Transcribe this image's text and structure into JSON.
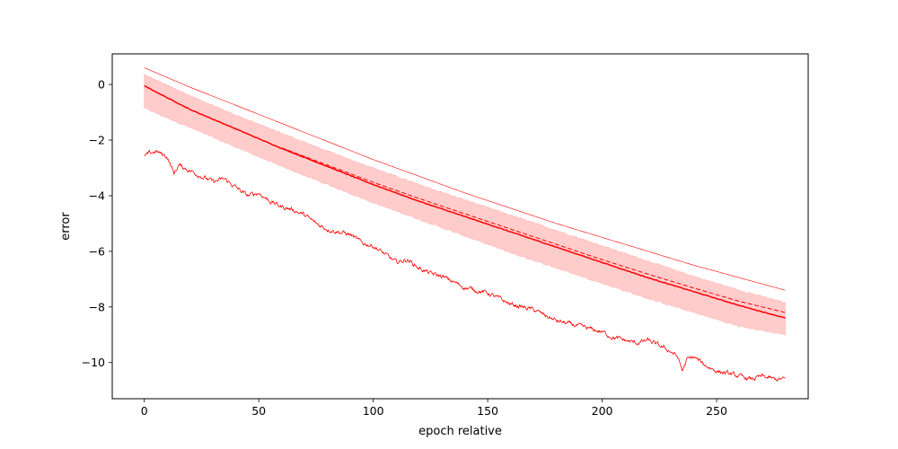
{
  "chart_data": {
    "type": "line",
    "title": "",
    "xlabel": "epoch relative",
    "ylabel": "error",
    "xlim": [
      -14,
      290
    ],
    "ylim": [
      -11.3,
      1.1
    ],
    "x_ticks": [
      0,
      50,
      100,
      150,
      200,
      250
    ],
    "y_ticks": [
      0,
      -2,
      -4,
      -6,
      -8,
      -10
    ],
    "grid": false,
    "legend": "none",
    "x_range": [
      0,
      280
    ],
    "band": {
      "color": "#ff0000",
      "opacity": 0.2,
      "x": [
        0,
        20,
        40,
        60,
        80,
        100,
        120,
        140,
        160,
        180,
        200,
        220,
        240,
        260,
        280
      ],
      "upper": [
        0.35,
        -0.4,
        -1.1,
        -1.75,
        -2.4,
        -3.0,
        -3.6,
        -4.15,
        -4.7,
        -5.25,
        -5.8,
        -6.35,
        -6.9,
        -7.4,
        -7.85
      ],
      "lower": [
        -0.85,
        -1.55,
        -2.25,
        -2.95,
        -3.6,
        -4.25,
        -4.85,
        -5.45,
        -6.05,
        -6.6,
        -7.15,
        -7.7,
        -8.2,
        -8.7,
        -9.0
      ]
    },
    "series": [
      {
        "style": "solid",
        "color": "#ff0000",
        "width": 1.5,
        "x": [
          0,
          20,
          40,
          60,
          80,
          100,
          120,
          140,
          160,
          180,
          200,
          220,
          240,
          260,
          280
        ],
        "y": [
          -0.05,
          -0.9,
          -1.6,
          -2.3,
          -2.95,
          -3.6,
          -4.2,
          -4.75,
          -5.3,
          -5.85,
          -6.4,
          -6.95,
          -7.45,
          -7.95,
          -8.4
        ]
      },
      {
        "style": "dashed",
        "color": "#ff0000",
        "width": 1.0,
        "x": [
          60,
          80,
          100,
          120,
          140,
          160,
          180,
          200,
          220,
          240,
          260,
          280
        ],
        "y": [
          -2.28,
          -2.9,
          -3.52,
          -4.1,
          -4.65,
          -5.2,
          -5.75,
          -6.3,
          -6.82,
          -7.32,
          -7.8,
          -8.2
        ]
      },
      {
        "style": "thin",
        "color": "#ff0000",
        "width": 0.6,
        "x": [
          0,
          20,
          40,
          60,
          80,
          100,
          120,
          140,
          160,
          180,
          200,
          220,
          240,
          260,
          280
        ],
        "y": [
          0.6,
          -0.1,
          -0.75,
          -1.4,
          -2.05,
          -2.7,
          -3.3,
          -3.9,
          -4.45,
          -5.0,
          -5.5,
          -6.0,
          -6.5,
          -6.95,
          -7.4
        ]
      },
      {
        "style": "noisy",
        "color": "#ff0000",
        "width": 0.8,
        "x": [
          0,
          2,
          5,
          10,
          13,
          15,
          20,
          25,
          30,
          35,
          40,
          45,
          50,
          55,
          60,
          65,
          70,
          75,
          80,
          85,
          90,
          95,
          100,
          105,
          110,
          115,
          120,
          125,
          130,
          135,
          140,
          145,
          150,
          155,
          160,
          165,
          170,
          175,
          180,
          185,
          190,
          195,
          200,
          205,
          210,
          215,
          220,
          225,
          230,
          233,
          235,
          237,
          240,
          245,
          250,
          255,
          260,
          265,
          270,
          275,
          280
        ],
        "y": [
          -2.6,
          -2.5,
          -2.4,
          -2.6,
          -3.2,
          -2.9,
          -3.1,
          -3.3,
          -3.5,
          -3.4,
          -3.7,
          -4.0,
          -3.9,
          -4.2,
          -4.4,
          -4.5,
          -4.7,
          -5.0,
          -5.2,
          -5.3,
          -5.4,
          -5.7,
          -5.8,
          -6.1,
          -6.4,
          -6.3,
          -6.6,
          -6.8,
          -6.9,
          -7.1,
          -7.3,
          -7.4,
          -7.5,
          -7.7,
          -7.9,
          -8.0,
          -8.1,
          -8.3,
          -8.5,
          -8.6,
          -8.7,
          -8.8,
          -8.9,
          -9.1,
          -9.2,
          -9.3,
          -9.2,
          -9.4,
          -9.6,
          -9.8,
          -10.3,
          -9.9,
          -9.8,
          -10.1,
          -10.3,
          -10.4,
          -10.5,
          -10.6,
          -10.5,
          -10.6,
          -10.6
        ]
      }
    ]
  }
}
